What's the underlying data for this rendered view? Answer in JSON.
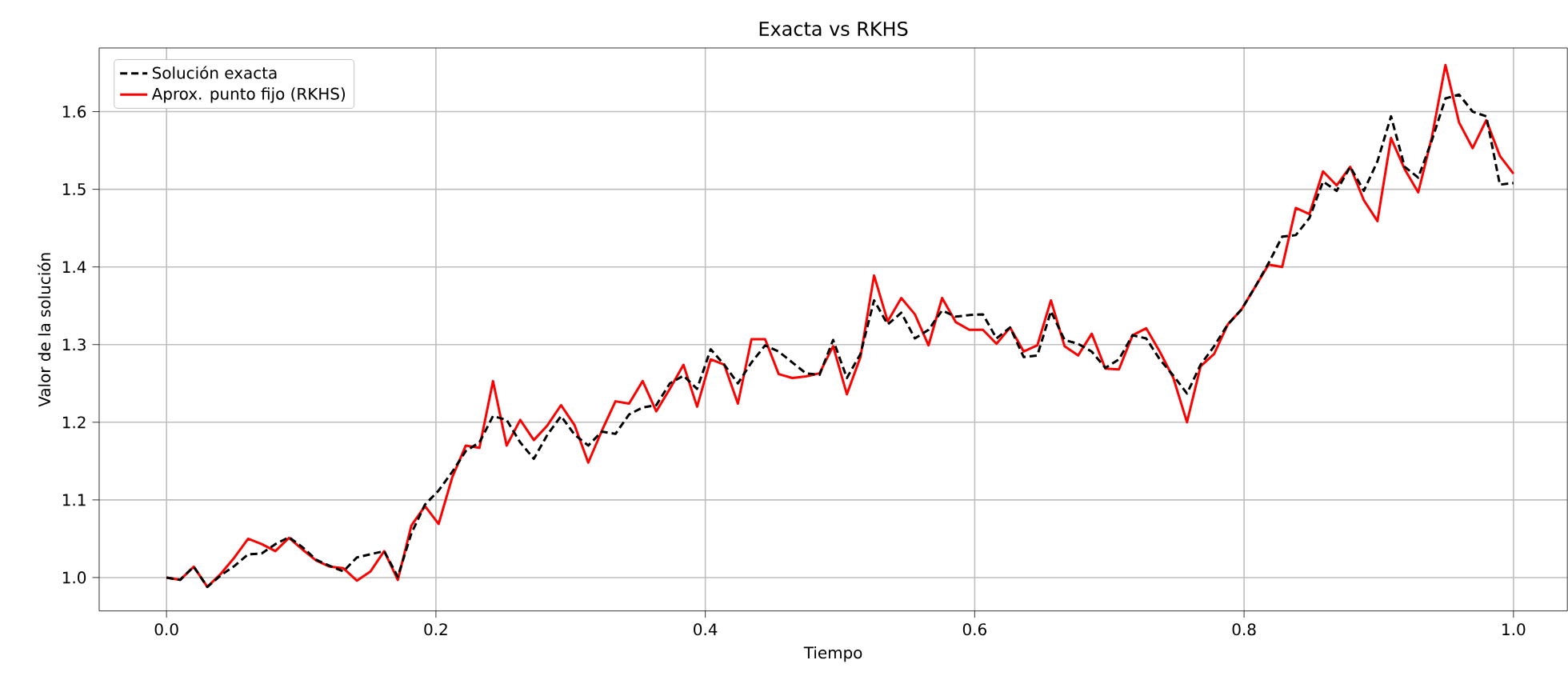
{
  "chart_data": {
    "type": "line",
    "title": "Exacta vs RKHS",
    "xlabel": "Tiempo",
    "ylabel": "Valor de la solución",
    "x": [
      0.0,
      0.0101,
      0.0202,
      0.0303,
      0.0404,
      0.0505,
      0.0606,
      0.0707,
      0.0808,
      0.0909,
      0.101,
      0.1111,
      0.1212,
      0.1313,
      0.1414,
      0.1515,
      0.1616,
      0.1717,
      0.1818,
      0.1919,
      0.202,
      0.2121,
      0.2222,
      0.2323,
      0.2424,
      0.2525,
      0.2626,
      0.2727,
      0.2828,
      0.2929,
      0.303,
      0.3131,
      0.3232,
      0.3333,
      0.3434,
      0.3535,
      0.3636,
      0.3737,
      0.3838,
      0.3939,
      0.404,
      0.4141,
      0.4242,
      0.4343,
      0.4444,
      0.4545,
      0.4646,
      0.4747,
      0.4848,
      0.4949,
      0.5051,
      0.5152,
      0.5253,
      0.5354,
      0.5455,
      0.5556,
      0.5657,
      0.5758,
      0.5859,
      0.596,
      0.6061,
      0.6162,
      0.6263,
      0.6364,
      0.6465,
      0.6566,
      0.6667,
      0.6768,
      0.6869,
      0.697,
      0.7071,
      0.7172,
      0.7273,
      0.7374,
      0.7475,
      0.7576,
      0.7677,
      0.7778,
      0.7879,
      0.798,
      0.8081,
      0.8182,
      0.8283,
      0.8384,
      0.8485,
      0.8586,
      0.8687,
      0.8788,
      0.8889,
      0.899,
      0.9091,
      0.9192,
      0.9293,
      0.9394,
      0.9495,
      0.9596,
      0.9697,
      0.9798,
      0.9899,
      1.0
    ],
    "series": [
      {
        "name": "Solución exacta",
        "color": "#000000",
        "line_style": "dashed",
        "values": [
          1.0,
          0.997,
          1.014,
          0.988,
          1.003,
          1.015,
          1.03,
          1.031,
          1.043,
          1.052,
          1.039,
          1.023,
          1.015,
          1.008,
          1.026,
          1.03,
          1.034,
          1.001,
          1.057,
          1.094,
          1.112,
          1.136,
          1.163,
          1.174,
          1.208,
          1.203,
          1.174,
          1.153,
          1.184,
          1.208,
          1.184,
          1.17,
          1.188,
          1.185,
          1.21,
          1.219,
          1.222,
          1.25,
          1.26,
          1.243,
          1.294,
          1.274,
          1.25,
          1.277,
          1.299,
          1.291,
          1.277,
          1.263,
          1.261,
          1.306,
          1.257,
          1.288,
          1.357,
          1.326,
          1.341,
          1.308,
          1.319,
          1.344,
          1.336,
          1.338,
          1.339,
          1.308,
          1.322,
          1.284,
          1.286,
          1.343,
          1.306,
          1.301,
          1.291,
          1.27,
          1.281,
          1.312,
          1.308,
          1.281,
          1.26,
          1.237,
          1.274,
          1.298,
          1.326,
          1.345,
          1.374,
          1.405,
          1.439,
          1.441,
          1.463,
          1.51,
          1.498,
          1.529,
          1.498,
          1.536,
          1.594,
          1.529,
          1.515,
          1.563,
          1.617,
          1.622,
          1.6,
          1.594,
          1.506,
          1.508
        ]
      },
      {
        "name": "Aprox. punto fijo (RKHS)",
        "color": "#ff0000",
        "line_style": "solid",
        "values": [
          1.0,
          0.997,
          1.014,
          0.988,
          1.005,
          1.026,
          1.05,
          1.043,
          1.034,
          1.051,
          1.036,
          1.022,
          1.014,
          1.012,
          0.996,
          1.008,
          1.034,
          0.997,
          1.067,
          1.092,
          1.069,
          1.129,
          1.17,
          1.167,
          1.253,
          1.17,
          1.203,
          1.177,
          1.196,
          1.222,
          1.196,
          1.148,
          1.189,
          1.227,
          1.224,
          1.253,
          1.214,
          1.243,
          1.274,
          1.22,
          1.281,
          1.274,
          1.224,
          1.307,
          1.307,
          1.262,
          1.257,
          1.259,
          1.263,
          1.298,
          1.236,
          1.284,
          1.389,
          1.33,
          1.36,
          1.339,
          1.299,
          1.36,
          1.329,
          1.319,
          1.319,
          1.301,
          1.322,
          1.291,
          1.299,
          1.357,
          1.298,
          1.286,
          1.314,
          1.269,
          1.268,
          1.312,
          1.321,
          1.291,
          1.257,
          1.2,
          1.272,
          1.288,
          1.326,
          1.345,
          1.374,
          1.403,
          1.4,
          1.476,
          1.468,
          1.523,
          1.505,
          1.529,
          1.486,
          1.459,
          1.566,
          1.526,
          1.496,
          1.567,
          1.66,
          1.586,
          1.553,
          1.589,
          1.543,
          1.52
        ]
      }
    ],
    "xlim": [
      -0.05,
      1.04
    ],
    "ylim": [
      0.957,
      1.682
    ],
    "xticks": [
      {
        "value": 0,
        "label": "0.0"
      },
      0.2,
      0.4,
      0.6,
      0.8,
      {
        "value": 1,
        "label": "1.0"
      }
    ],
    "yticks": [
      {
        "value": 1,
        "label": "1.0"
      },
      1.1,
      1.2,
      1.3,
      1.4,
      1.5,
      1.6
    ],
    "grid": true,
    "legend": "top left",
    "marker": "none"
  }
}
